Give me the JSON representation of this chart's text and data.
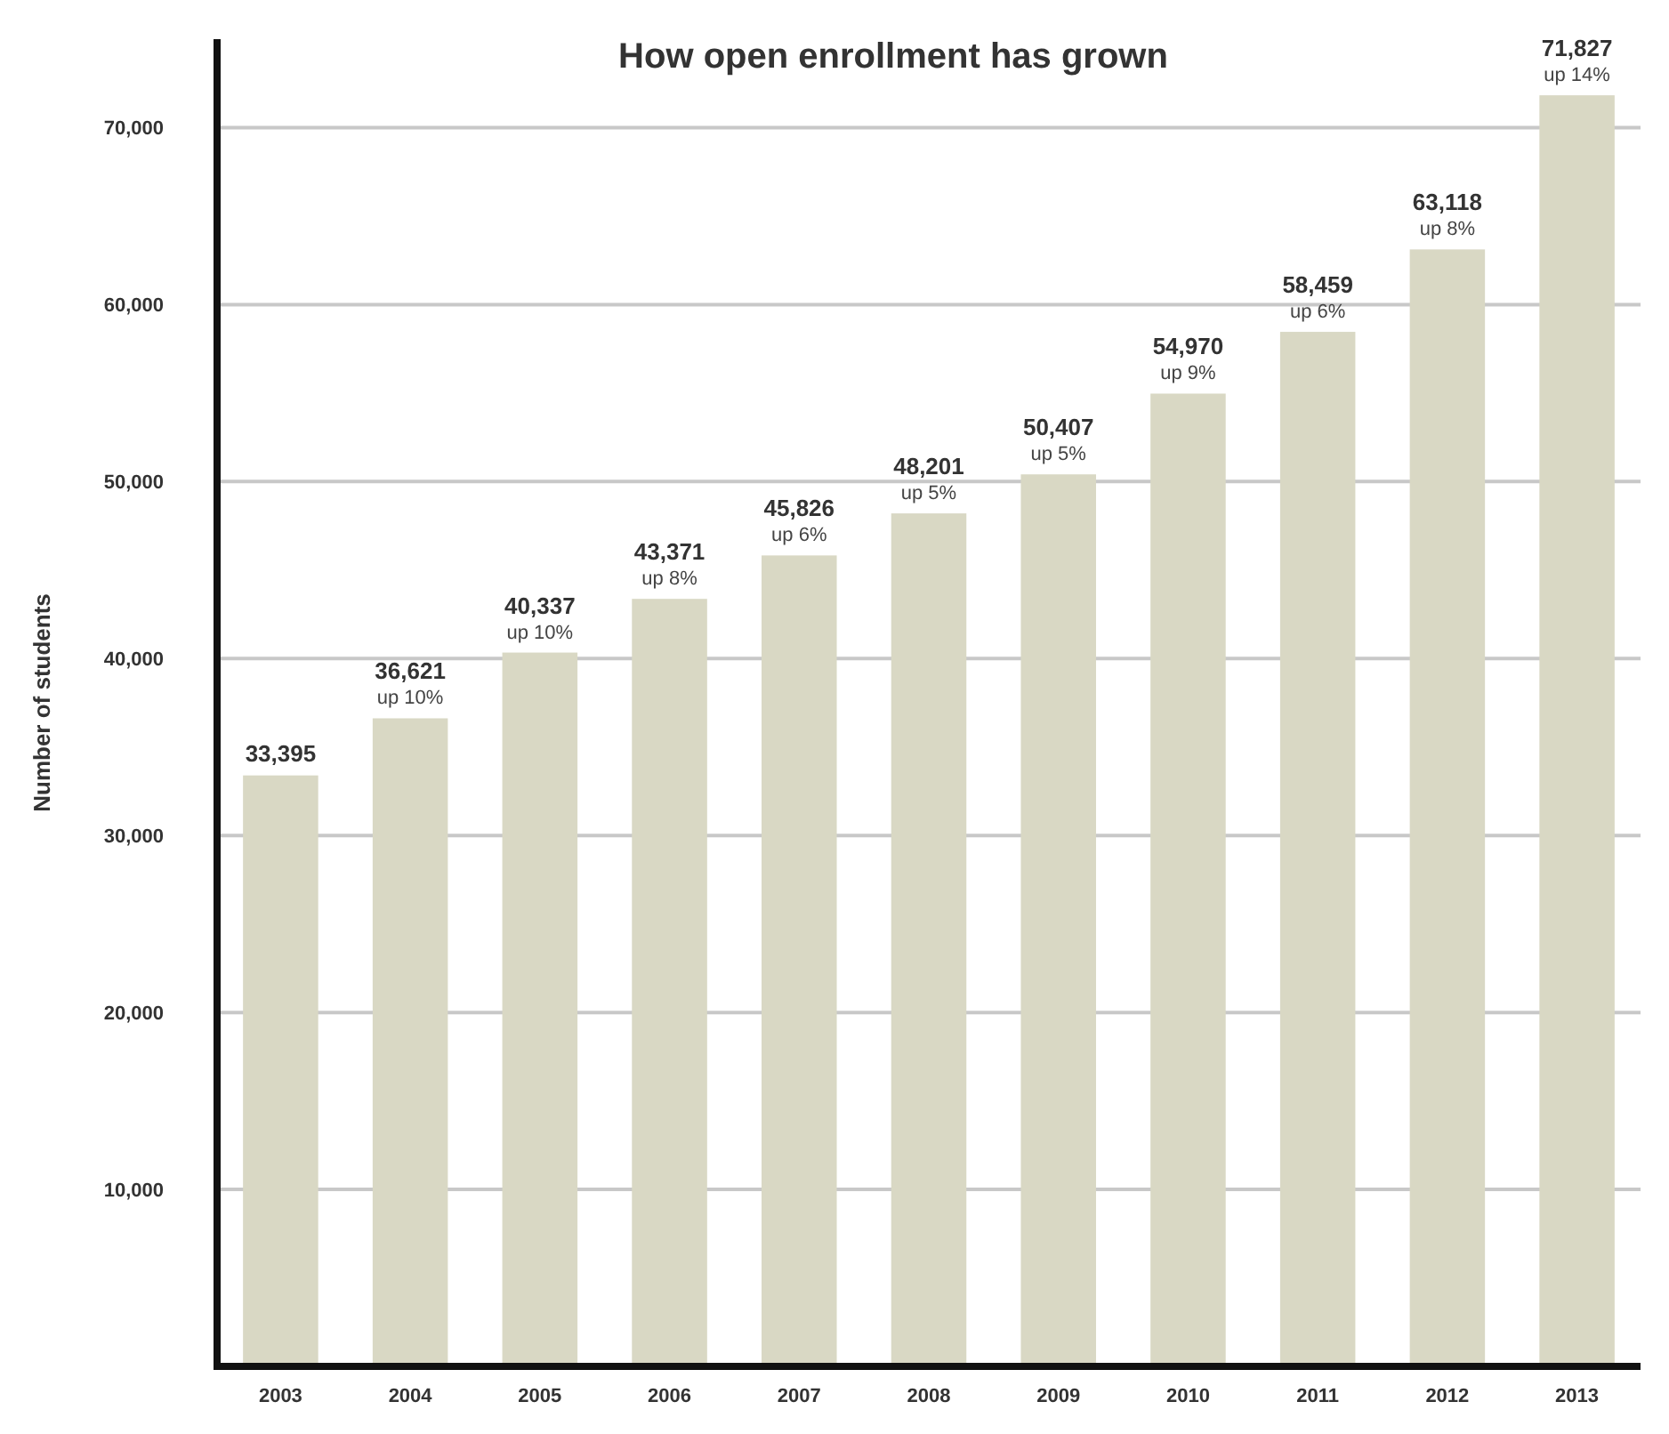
{
  "chart_data": {
    "type": "bar",
    "title": "How open enrollment has grown",
    "ylabel": "Number of students",
    "categories": [
      "2003",
      "2004",
      "2005",
      "2006",
      "2007",
      "2008",
      "2009",
      "2010",
      "2011",
      "2012",
      "2013"
    ],
    "values": [
      33395,
      36621,
      40337,
      43371,
      45826,
      48201,
      50407,
      54970,
      58459,
      63118,
      71827
    ],
    "color": "#d9d8c4",
    "value_labels": [
      "33,395",
      "36,621",
      "40,337",
      "43,371",
      "45,826",
      "48,201",
      "50,407",
      "54,970",
      "58,459",
      "63,118",
      "71,827"
    ],
    "annotations": [
      {
        "text": "up 10%",
        "x": "2004",
        "y": 36621
      },
      {
        "text": "up 10%",
        "x": "2005",
        "y": 40337
      },
      {
        "text": "up 8%",
        "x": "2006",
        "y": 43371
      },
      {
        "text": "up 6%",
        "x": "2007",
        "y": 45826
      },
      {
        "text": "up 5%",
        "x": "2008",
        "y": 48201
      },
      {
        "text": "up 5%",
        "x": "2009",
        "y": 50407
      },
      {
        "text": "up 9%",
        "x": "2010",
        "y": 54970
      },
      {
        "text": "up 6%",
        "x": "2011",
        "y": 58459
      },
      {
        "text": "up 8%",
        "x": "2012",
        "y": 63118
      },
      {
        "text": "up 14%",
        "x": "2013",
        "y": 71827
      }
    ],
    "ylim": [
      0,
      75000
    ],
    "yticks": [
      {
        "value": 10000,
        "label": "10,000"
      },
      {
        "value": 20000,
        "label": "20,000"
      },
      {
        "value": 30000,
        "label": "30,000"
      },
      {
        "value": 40000,
        "label": "40,000"
      },
      {
        "value": 50000,
        "label": "50,000"
      },
      {
        "value": 60000,
        "label": "60,000"
      },
      {
        "value": 70000,
        "label": "70,000"
      }
    ],
    "grid": "y"
  }
}
